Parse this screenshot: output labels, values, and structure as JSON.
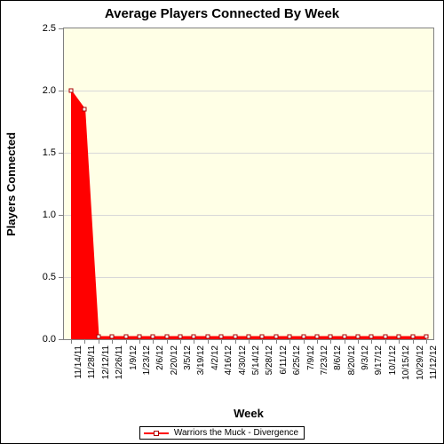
{
  "chart": {
    "type": "area",
    "title": "Average Players Connected By Week",
    "title_fontsize": 15,
    "x_axis_label": "Week",
    "y_axis_label": "Players Connected",
    "label_fontsize": 13,
    "background_color": "#ffffff",
    "plot_background_color": "#ffffe6",
    "grid_color": "#d8d8d8",
    "border_color": "#808080",
    "ylim": [
      0.0,
      2.5
    ],
    "ytick_step": 0.5,
    "y_ticks": [
      "0.0",
      "0.5",
      "1.0",
      "1.5",
      "2.0",
      "2.5"
    ],
    "x_categories": [
      "11/14/11",
      "11/28/11",
      "12/12/11",
      "12/26/11",
      "1/9/12",
      "1/23/12",
      "2/6/12",
      "2/20/12",
      "3/5/12",
      "3/19/12",
      "4/2/12",
      "4/16/12",
      "4/30/12",
      "5/14/12",
      "5/28/12",
      "6/11/12",
      "6/25/12",
      "7/9/12",
      "7/23/12",
      "8/6/12",
      "8/20/12",
      "9/3/12",
      "9/17/12",
      "10/1/12",
      "10/15/12",
      "10/29/12",
      "11/12/12"
    ],
    "series": [
      {
        "name": "Warriors the Muck - Divergence",
        "color": "#ff0000",
        "marker_border": "#aa0000",
        "marker_fill": "#ffffff",
        "marker_size": 5,
        "values": [
          2.0,
          1.85,
          0.02,
          0.02,
          0.02,
          0.02,
          0.02,
          0.02,
          0.02,
          0.02,
          0.02,
          0.02,
          0.02,
          0.02,
          0.02,
          0.02,
          0.02,
          0.02,
          0.02,
          0.02,
          0.02,
          0.02,
          0.02,
          0.02,
          0.02,
          0.02,
          0.02
        ]
      }
    ]
  }
}
